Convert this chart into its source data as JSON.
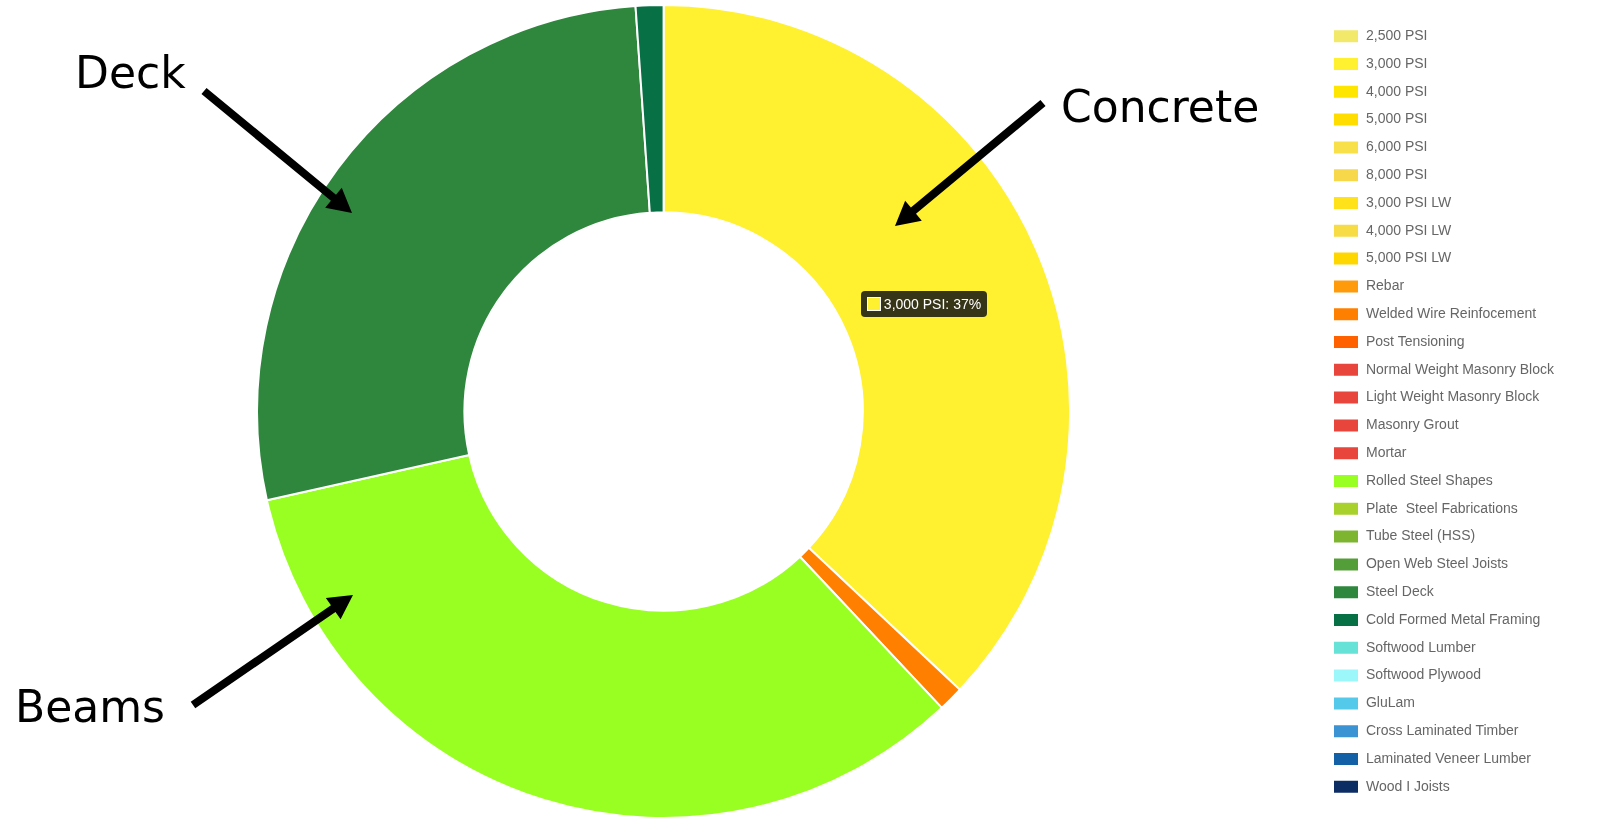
{
  "chart_data": {
    "type": "donut",
    "categories": [
      "2,500 PSI",
      "3,000 PSI",
      "4,000 PSI",
      "5,000 PSI",
      "6,000 PSI",
      "8,000 PSI",
      "3,000 PSI LW",
      "4,000 PSI LW",
      "5,000 PSI LW",
      "Rebar",
      "Welded Wire Reinfocement",
      "Post Tensioning",
      "Normal Weight Masonry Block",
      "Light Weight Masonry Block",
      "Masonry Grout",
      "Mortar",
      "Rolled Steel Shapes",
      "Plate  Steel Fabrications",
      "Tube Steel (HSS)",
      "Open Web Steel Joists",
      "Steel Deck",
      "Cold Formed Metal Framing",
      "Softwood Lumber",
      "Softwood Plywood",
      "GluLam",
      "Cross Laminated Timber",
      "Laminated Veneer Lumber",
      "Wood I Joists"
    ],
    "values": [
      0,
      37,
      0,
      0,
      0,
      0,
      0,
      0,
      0,
      0,
      1,
      0,
      0,
      0,
      0,
      0,
      33.5,
      0,
      0,
      0,
      27.4,
      1.1,
      0,
      0,
      0,
      0,
      0,
      0
    ],
    "colors": [
      "#f2e86a",
      "#fff030",
      "#ffe600",
      "#ffdd00",
      "#f7e04a",
      "#f7d84a",
      "#ffe21a",
      "#f7dc45",
      "#ffd700",
      "#ff9a0a",
      "#ff7f00",
      "#ff6000",
      "#e8453c",
      "#e8453c",
      "#e8453c",
      "#e8453c",
      "#99ff22",
      "#a8d12c",
      "#7db531",
      "#549e3a",
      "#2e873c",
      "#077044",
      "#66e2d6",
      "#9cf7fb",
      "#55c9ea",
      "#3b93d4",
      "#1460a6",
      "#0c2d64"
    ],
    "legend": "right",
    "annotations": [
      "3,000 PSI: 37%",
      "Deck",
      "Concrete",
      "Beams"
    ]
  }
}
